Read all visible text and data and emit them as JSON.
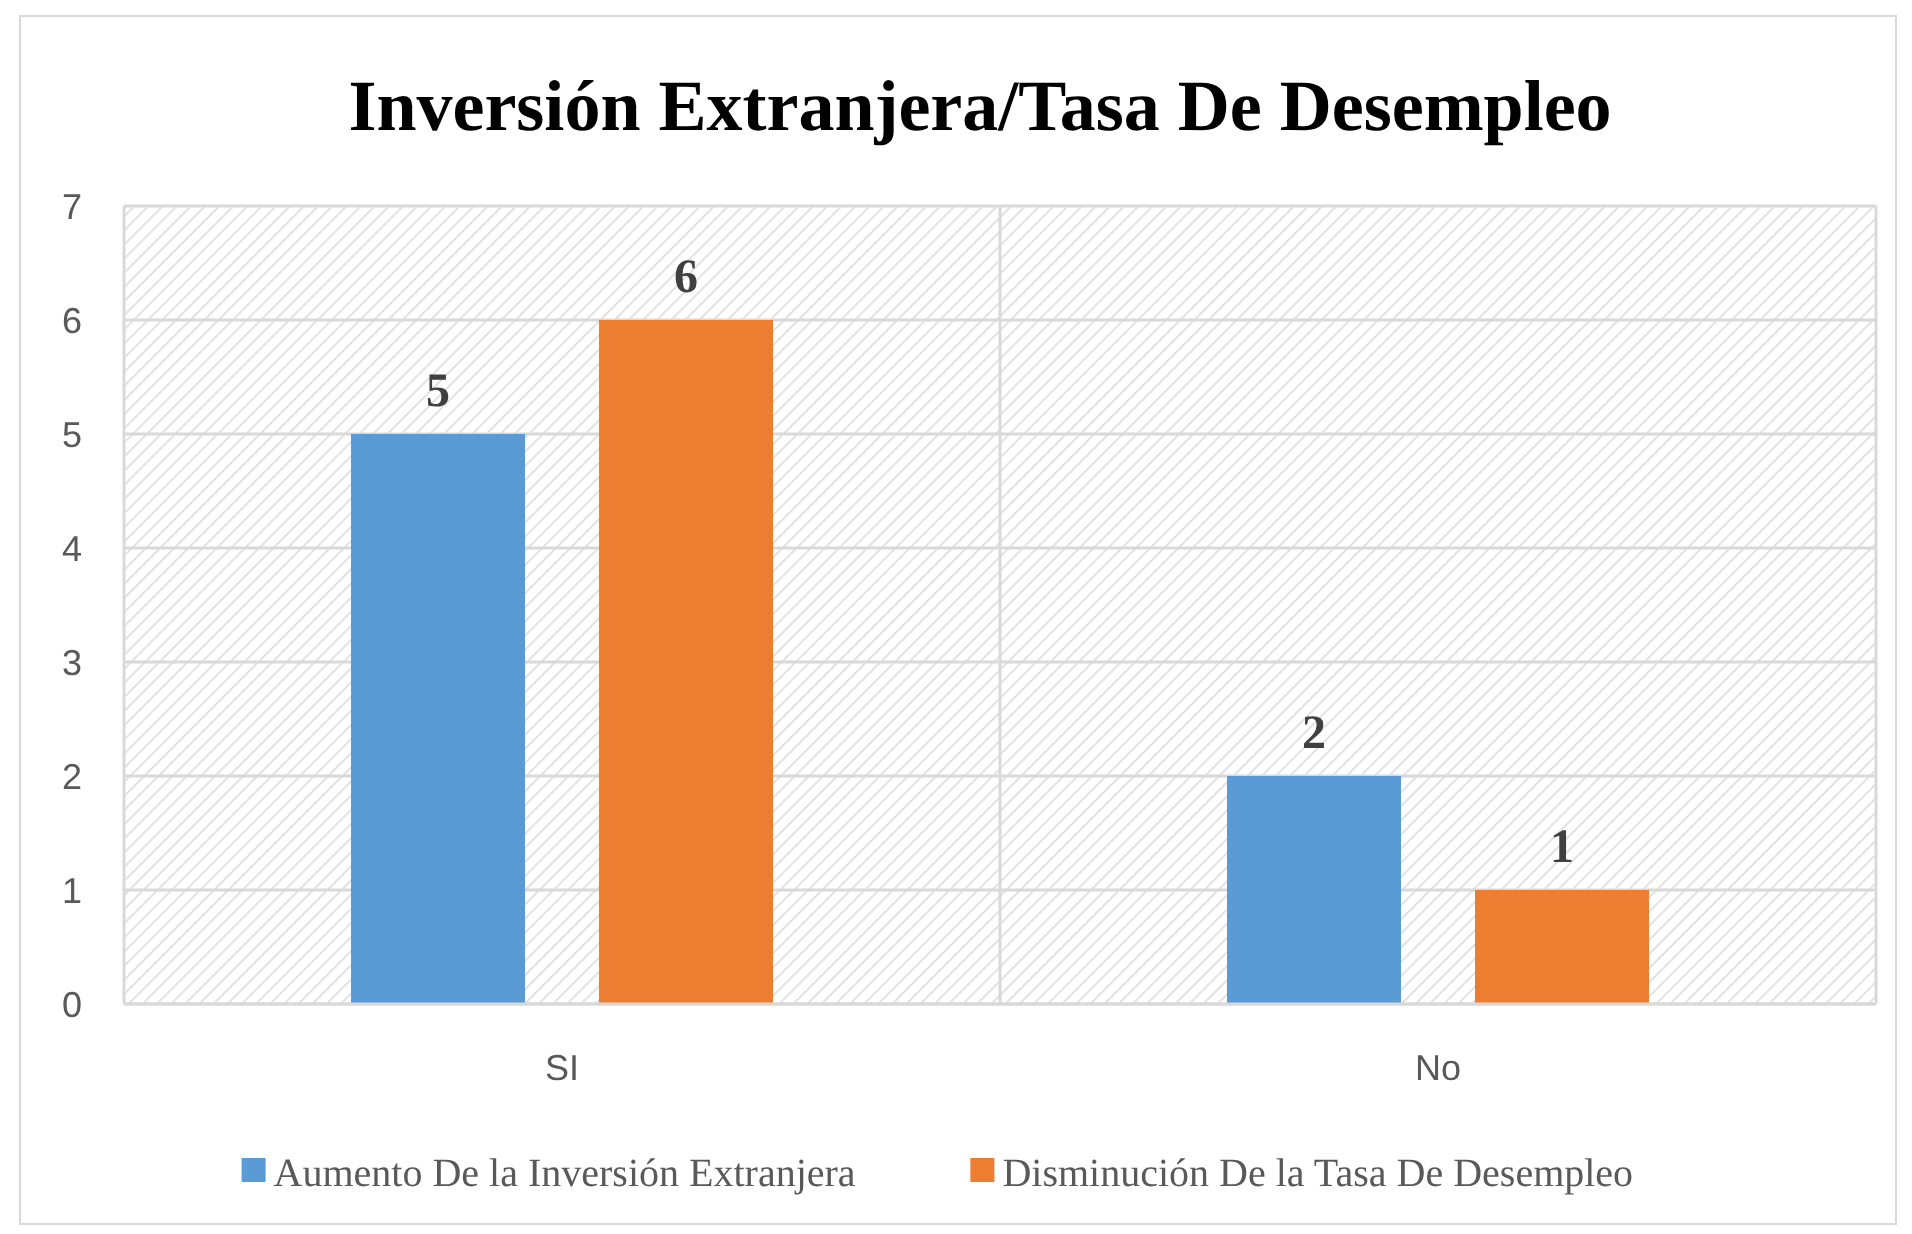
{
  "chart_data": {
    "type": "bar",
    "title": "Inversión Extranjera/Tasa De Desempleo",
    "categories": [
      "SI",
      "No"
    ],
    "series": [
      {
        "name": "Aumento De la Inversión Extranjera",
        "color": "#5b9bd5",
        "values": [
          5,
          2
        ]
      },
      {
        "name": "Disminución De la Tasa De Desempleo",
        "color": "#ed7d31",
        "values": [
          6,
          1
        ]
      }
    ],
    "ylim": [
      0,
      7
    ],
    "yticks": [
      0,
      1,
      2,
      3,
      4,
      5,
      6,
      7
    ],
    "grid": true,
    "legend": "bottom",
    "data_labels": true
  }
}
